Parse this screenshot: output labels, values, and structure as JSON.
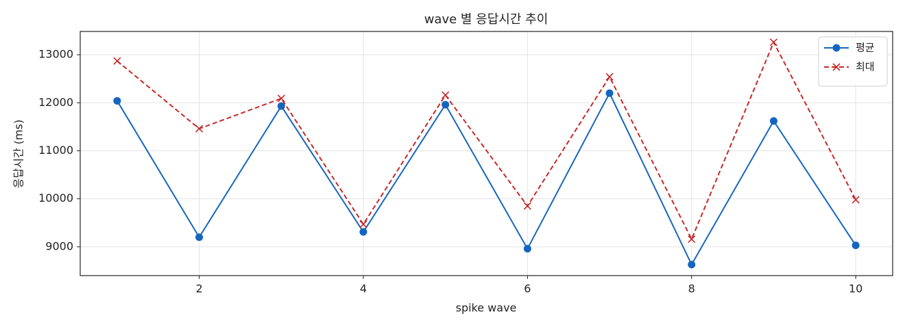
{
  "chart_data": {
    "type": "line",
    "title": "wave 별 응답시간 추이",
    "xlabel": "spike wave",
    "ylabel": "응답시간 (ms)",
    "x": [
      1,
      2,
      3,
      4,
      5,
      6,
      7,
      8,
      9,
      10
    ],
    "series": [
      {
        "name": "평균",
        "color": "#1565c0",
        "marker": "o",
        "linestyle": "solid",
        "values": [
          12040,
          9200,
          11930,
          9310,
          11960,
          8960,
          12200,
          8630,
          11620,
          9030
        ]
      },
      {
        "name": "최대",
        "color": "#c62828",
        "marker": "x",
        "linestyle": "dashed",
        "values": [
          12870,
          11460,
          12090,
          9470,
          12160,
          9850,
          12540,
          9160,
          13260,
          9980
        ]
      }
    ],
    "xlim": [
      0.55,
      10.45
    ],
    "xticks": [
      2,
      4,
      6,
      8,
      10
    ],
    "ylim": [
      8400,
      13485
    ],
    "yticks": [
      9000,
      10000,
      11000,
      12000,
      13000
    ],
    "grid": true,
    "legend": "upper right"
  }
}
